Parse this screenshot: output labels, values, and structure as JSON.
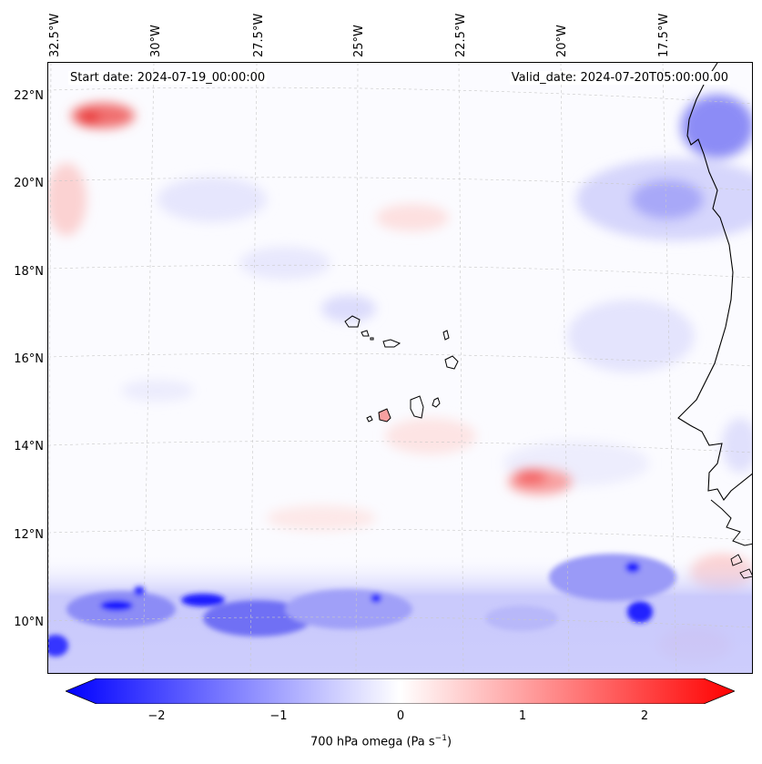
{
  "map": {
    "start_date": "Start date: 2024-07-19_00:00:00",
    "valid_date": "Valid_date: 2024-07-20T05:00:00.00",
    "lon_labels": [
      "32.5°W",
      "30°W",
      "27.5°W",
      "25°W",
      "22.5°W",
      "20°W",
      "17.5°W"
    ],
    "lat_labels": [
      "22°N",
      "20°N",
      "18°N",
      "16°N",
      "14°N",
      "12°N",
      "10°N"
    ],
    "colors": {
      "negative": "#0000ff",
      "zero": "#ffffff",
      "positive": "#ff0000",
      "coast": "#000000"
    }
  },
  "colorbar": {
    "ticks": [
      "−2",
      "−1",
      "0",
      "1",
      "2"
    ],
    "label_main": "700 hPa omega (Pa s",
    "label_exp": "−1",
    "label_end": ")"
  }
}
